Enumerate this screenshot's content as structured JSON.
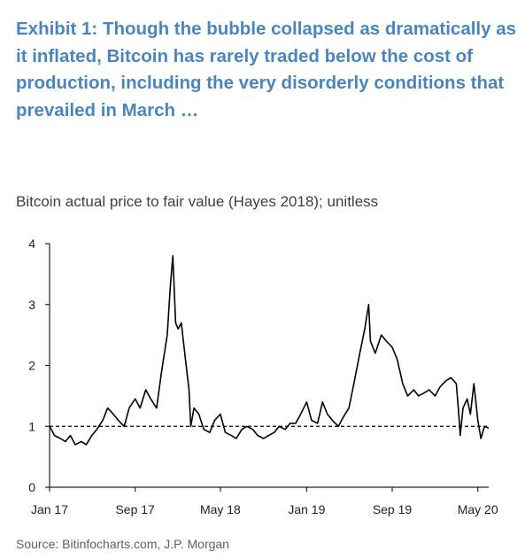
{
  "title": "Exhibit 1: Though the bubble collapsed as dramatically as it inflated, Bitcoin has rarely traded below the cost of production, including the very disorderly conditions that prevailed in March …",
  "subtitle": "Bitcoin actual price to fair value (Hayes 2018); unitless",
  "source": "Source: Bitinfocharts.com, J.P. Morgan",
  "chart_data": {
    "type": "line",
    "title": "Bitcoin actual price to fair value (Hayes 2018); unitless",
    "xlabel": "",
    "ylabel": "",
    "ylim": [
      0,
      4
    ],
    "xlim": [
      "Jan 17",
      "Jun 20"
    ],
    "y_ticks": [
      "0",
      "1",
      "2",
      "3",
      "4"
    ],
    "x_ticks": [
      "Jan 17",
      "Sep 17",
      "May 18",
      "Jan 19",
      "Sep 19",
      "May 20"
    ],
    "reference_line": {
      "y": 1,
      "style": "dashed"
    },
    "grid": false,
    "series": [
      {
        "x": [
          "2017-01-01",
          "2017-01-15",
          "2017-02-01",
          "2017-02-15",
          "2017-03-01",
          "2017-03-15",
          "2017-04-01",
          "2017-04-15",
          "2017-05-01",
          "2017-05-15",
          "2017-06-01",
          "2017-06-15",
          "2017-07-01",
          "2017-07-15",
          "2017-08-01",
          "2017-08-15",
          "2017-09-01",
          "2017-09-15",
          "2017-10-01",
          "2017-10-15",
          "2017-11-01",
          "2017-11-15",
          "2017-12-01",
          "2017-12-10",
          "2017-12-17",
          "2017-12-25",
          "2018-01-01",
          "2018-01-10",
          "2018-01-20",
          "2018-02-01",
          "2018-02-06",
          "2018-02-15",
          "2018-03-01",
          "2018-03-15",
          "2018-04-01",
          "2018-04-15",
          "2018-05-01",
          "2018-05-15",
          "2018-06-01",
          "2018-06-15",
          "2018-07-01",
          "2018-07-15",
          "2018-08-01",
          "2018-08-15",
          "2018-09-01",
          "2018-09-15",
          "2018-10-01",
          "2018-10-15",
          "2018-11-01",
          "2018-11-15",
          "2018-12-01",
          "2018-12-15",
          "2019-01-01",
          "2019-01-15",
          "2019-02-01",
          "2019-02-15",
          "2019-03-01",
          "2019-03-15",
          "2019-04-01",
          "2019-04-15",
          "2019-05-01",
          "2019-05-15",
          "2019-06-01",
          "2019-06-15",
          "2019-06-26",
          "2019-07-01",
          "2019-07-15",
          "2019-08-01",
          "2019-08-15",
          "2019-09-01",
          "2019-09-15",
          "2019-10-01",
          "2019-10-15",
          "2019-11-01",
          "2019-11-15",
          "2019-12-01",
          "2019-12-15",
          "2020-01-01",
          "2020-01-15",
          "2020-02-01",
          "2020-02-15",
          "2020-03-01",
          "2020-03-08",
          "2020-03-12",
          "2020-03-20",
          "2020-04-01",
          "2020-04-10",
          "2020-04-20",
          "2020-05-01",
          "2020-05-10",
          "2020-05-20",
          "2020-06-01"
        ],
        "values": [
          1.0,
          0.85,
          0.8,
          0.75,
          0.85,
          0.7,
          0.75,
          0.7,
          0.85,
          0.95,
          1.1,
          1.3,
          1.2,
          1.1,
          1.0,
          1.3,
          1.45,
          1.3,
          1.6,
          1.45,
          1.3,
          1.9,
          2.5,
          3.3,
          3.8,
          2.7,
          2.6,
          2.7,
          2.2,
          1.6,
          1.0,
          1.3,
          1.2,
          0.95,
          0.9,
          1.1,
          1.2,
          0.9,
          0.85,
          0.8,
          0.95,
          1.0,
          0.95,
          0.85,
          0.8,
          0.85,
          0.9,
          1.0,
          0.95,
          1.05,
          1.05,
          1.2,
          1.4,
          1.1,
          1.05,
          1.4,
          1.2,
          1.1,
          1.0,
          1.15,
          1.3,
          1.7,
          2.2,
          2.6,
          3.0,
          2.4,
          2.2,
          2.5,
          2.4,
          2.3,
          2.1,
          1.7,
          1.5,
          1.6,
          1.5,
          1.55,
          1.6,
          1.5,
          1.65,
          1.75,
          1.8,
          1.7,
          1.2,
          0.85,
          1.3,
          1.45,
          1.2,
          1.7,
          1.1,
          0.8,
          1.0,
          0.97
        ]
      }
    ]
  }
}
